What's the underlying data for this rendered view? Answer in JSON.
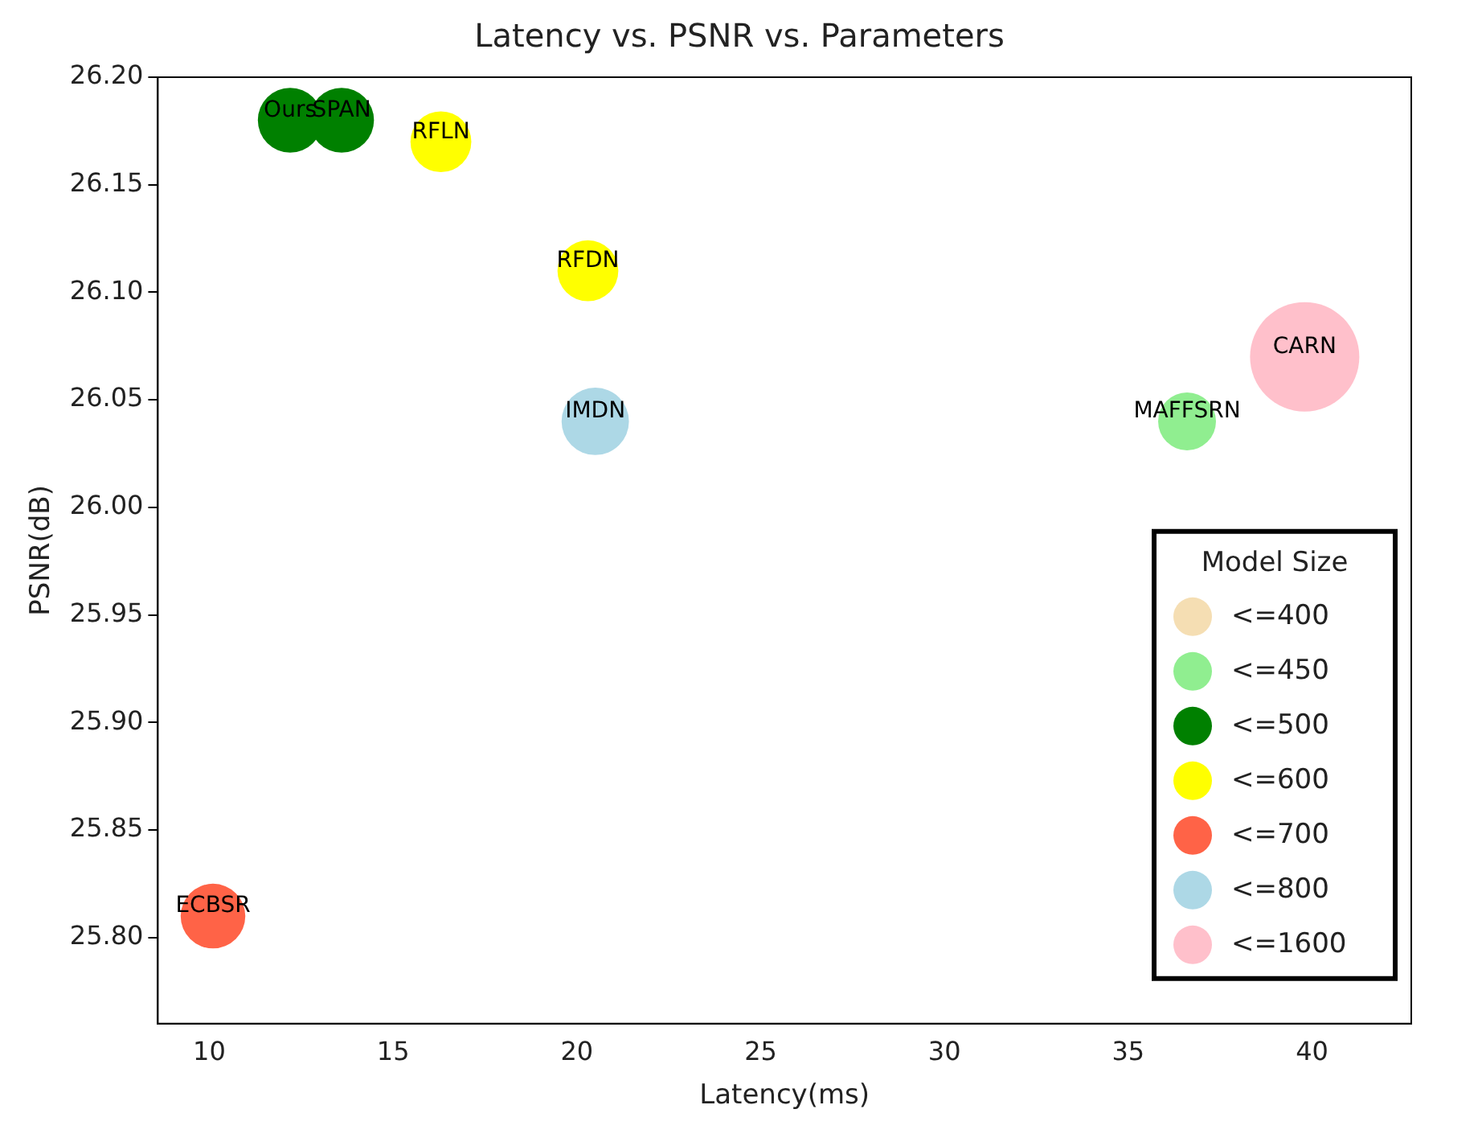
{
  "chart_data": {
    "type": "bubble",
    "title": "Latency vs. PSNR vs. Parameters",
    "xlabel": "Latency(ms)",
    "ylabel": "PSNR(dB)",
    "legend_title": "Model Size",
    "legend": "bottom right",
    "grid": false,
    "xlim": [
      8.6,
      42.7
    ],
    "xticks": [
      10,
      15,
      20,
      25,
      30,
      35,
      40
    ],
    "ylim": [
      25.76,
      26.2
    ],
    "yticks": [
      {
        "value": 25.8,
        "label": "25.80"
      },
      {
        "value": 25.85,
        "label": "25.85"
      },
      {
        "value": 25.9,
        "label": "25.90"
      },
      {
        "value": 25.95,
        "label": "25.95"
      },
      {
        "value": 26.0,
        "label": "26.00"
      },
      {
        "value": 26.05,
        "label": "26.05"
      },
      {
        "value": 26.1,
        "label": "26.10"
      },
      {
        "value": 26.15,
        "label": "26.15"
      },
      {
        "value": 26.2,
        "label": "26.20"
      }
    ],
    "series": [
      {
        "name": "<=400",
        "color": "#f5deb3"
      },
      {
        "name": "<=450",
        "color": "#90ee90",
        "x": [
          36.6
        ],
        "values": [
          26.04
        ],
        "sizes": [
          0.28
        ]
      },
      {
        "name": "<=500",
        "color": "#008000",
        "x": [
          12.2,
          13.6
        ],
        "values": [
          26.18,
          26.18
        ],
        "sizes": [
          0.35,
          0.35
        ]
      },
      {
        "name": "<=600",
        "color": "#ffff00",
        "x": [
          16.3,
          20.3
        ],
        "values": [
          26.17,
          26.11
        ],
        "sizes": [
          0.31,
          0.31
        ]
      },
      {
        "name": "<=700",
        "color": "#ff6347",
        "x": [
          10.1
        ],
        "values": [
          25.81
        ],
        "sizes": [
          0.35
        ]
      },
      {
        "name": "<=800",
        "color": "#add8e6",
        "x": [
          20.5
        ],
        "values": [
          26.04
        ],
        "sizes": [
          0.38
        ]
      },
      {
        "name": "<=1600",
        "color": "#ffc0cb",
        "x": [
          39.8
        ],
        "values": [
          26.07
        ],
        "sizes": [
          1
        ]
      }
    ],
    "annotations": [
      {
        "text": "Ours",
        "x": 12.2,
        "y": 26.18
      },
      {
        "text": "SPAN",
        "x": 13.6,
        "y": 26.18
      },
      {
        "text": "RFLN",
        "x": 16.3,
        "y": 26.17
      },
      {
        "text": "RFDN",
        "x": 20.3,
        "y": 26.11
      },
      {
        "text": "IMDN",
        "x": 20.5,
        "y": 26.04
      },
      {
        "text": "CARN",
        "x": 39.8,
        "y": 26.07
      },
      {
        "text": "MAFFSRN",
        "x": 36.6,
        "y": 26.04
      },
      {
        "text": "ECBSR",
        "x": 10.1,
        "y": 25.81
      }
    ]
  }
}
